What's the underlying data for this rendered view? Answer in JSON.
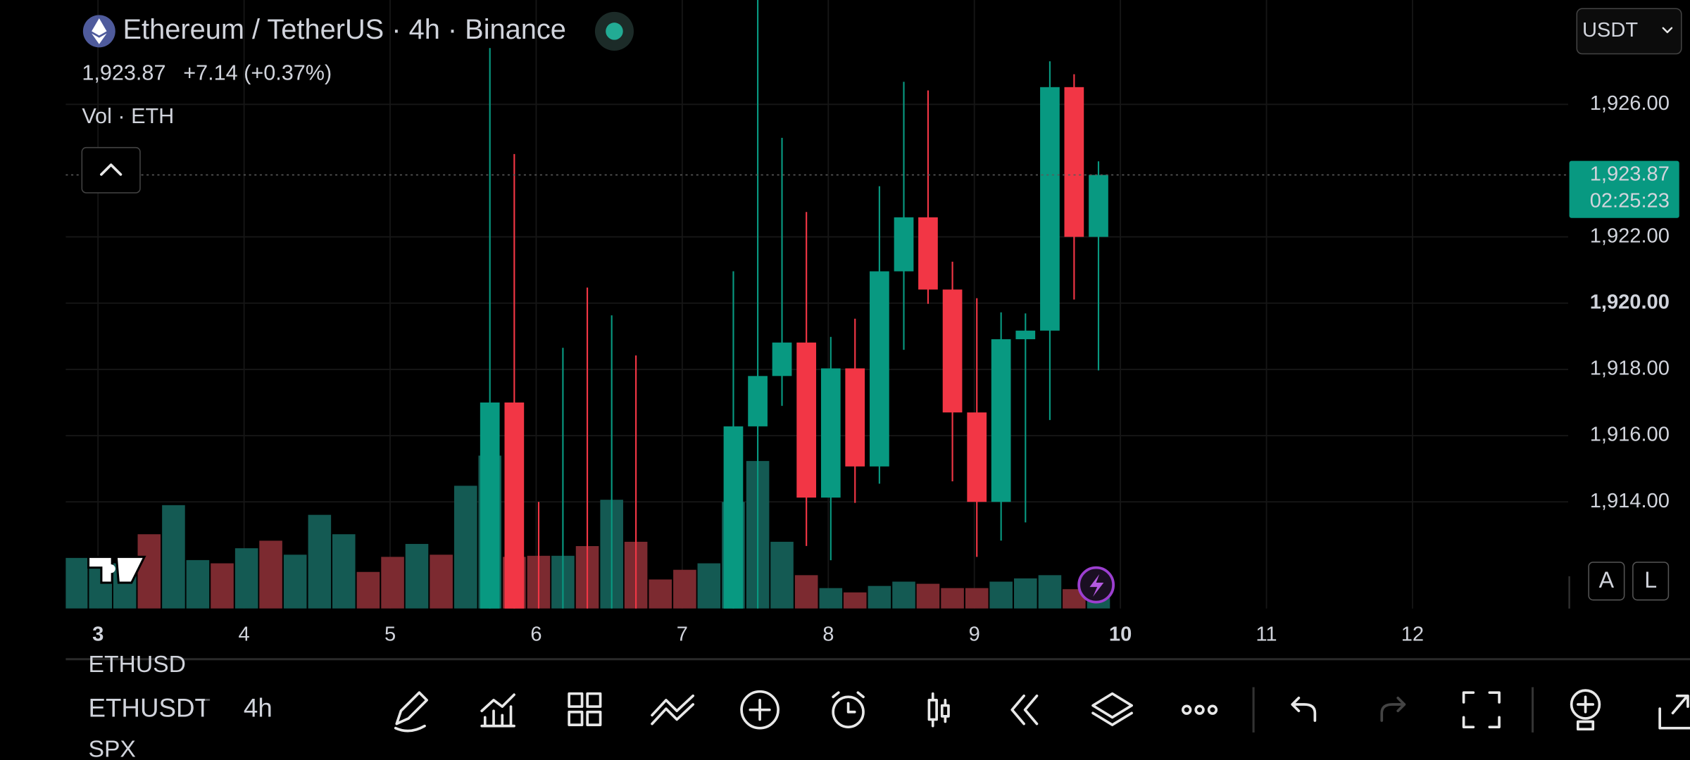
{
  "header": {
    "symbol": "Ethereum / TetherUS · 4h · Binance",
    "price": "1,923.87",
    "change": "+7.14 (+0.37%)",
    "volume_label": "Vol · ETH",
    "currency": "USDT"
  },
  "chart_data": {
    "type": "candlestick",
    "x": [
      2.85,
      3.017,
      3.183,
      3.35,
      3.517,
      3.683,
      3.85,
      4.017,
      4.183,
      4.35,
      4.517,
      4.683,
      4.85,
      5.017,
      5.183,
      5.35,
      5.517,
      5.683,
      5.85,
      6.017,
      6.183,
      6.35,
      6.517,
      6.683,
      6.85,
      7.017,
      7.183,
      7.35,
      7.517,
      7.683,
      7.85,
      8.017,
      8.183,
      8.35,
      8.517,
      8.683,
      8.85,
      9.017,
      9.183,
      9.35,
      9.517,
      9.683,
      9.85
    ],
    "open": [
      null,
      null,
      null,
      null,
      null,
      null,
      null,
      null,
      null,
      null,
      null,
      null,
      null,
      null,
      null,
      null,
      null,
      1910.5,
      1917.0,
      1910.7,
      1910.6,
      1910.7,
      1910.6,
      1910.7,
      null,
      null,
      null,
      1910.6,
      1916.28,
      1917.8,
      1918.81,
      1914.13,
      1918.03,
      1915.07,
      1920.96,
      1922.59,
      1920.41,
      1916.7,
      1914.0,
      1918.91,
      1919.17,
      1926.52,
      1922.0
    ],
    "high": [
      null,
      null,
      null,
      null,
      null,
      null,
      null,
      null,
      null,
      null,
      null,
      null,
      null,
      null,
      null,
      null,
      null,
      1927.7,
      1924.5,
      1914.0,
      1918.65,
      1920.47,
      1919.63,
      1918.42,
      null,
      null,
      null,
      1920.96,
      1929.5,
      1924.99,
      1922.75,
      1918.98,
      1919.53,
      1923.53,
      1926.68,
      1926.42,
      1921.25,
      1920.15,
      1919.72,
      1919.69,
      1927.3,
      1926.91,
      1924.28
    ],
    "low": [
      null,
      null,
      null,
      null,
      null,
      null,
      null,
      null,
      null,
      null,
      null,
      null,
      null,
      null,
      null,
      null,
      null,
      1910.4,
      1910.4,
      1910.4,
      1910.4,
      1910.4,
      1910.4,
      1910.4,
      null,
      null,
      null,
      1910.4,
      1910.5,
      1916.9,
      1912.67,
      1912.24,
      1913.97,
      1914.55,
      1918.59,
      1919.98,
      1914.62,
      1912.34,
      1912.83,
      1913.38,
      1916.47,
      1920.11,
      1917.97
    ],
    "close": [
      null,
      null,
      null,
      null,
      null,
      null,
      null,
      null,
      null,
      null,
      null,
      null,
      null,
      null,
      null,
      null,
      null,
      1917.0,
      1910.5,
      1910.6,
      1910.7,
      1910.6,
      1910.7,
      1910.6,
      null,
      null,
      null,
      1916.28,
      1917.8,
      1918.81,
      1914.13,
      1918.03,
      1915.07,
      1920.96,
      1922.59,
      1920.41,
      1916.7,
      1914.0,
      1918.91,
      1919.17,
      1926.52,
      1922.0,
      1923.87
    ],
    "volume": [
      47,
      40,
      42,
      69,
      96,
      45,
      42,
      56,
      63,
      50,
      87,
      69,
      34,
      48,
      60,
      50,
      114,
      142,
      48,
      49,
      49,
      58,
      101,
      62,
      27,
      36,
      42,
      99,
      137,
      62,
      31,
      19,
      15,
      21,
      25,
      23,
      19,
      19,
      25,
      28,
      31,
      18,
      10
    ],
    "volume_colors": [
      "#145a53",
      "#145a53",
      "#145a53",
      "#7c2a30",
      "#145a53",
      "#145a53",
      "#7c2a30",
      "#145a53",
      "#7c2a30",
      "#145a53",
      "#145a53",
      "#145a53",
      "#7c2a30",
      "#7c2a30",
      "#145a53",
      "#7c2a30",
      "#145a53",
      "#145a53",
      "#7c2a30",
      "#7c2a30",
      "#145a53",
      "#7c2a30",
      "#145a53",
      "#7c2a30",
      "#7c2a30",
      "#7c2a30",
      "#145a53",
      "#145a53",
      "#145a53",
      "#145a53",
      "#7c2a30",
      "#145a53",
      "#7c2a30",
      "#145a53",
      "#145a53",
      "#7c2a30",
      "#7c2a30",
      "#7c2a30",
      "#145a53",
      "#145a53",
      "#145a53",
      "#7c2a30",
      "#145a53"
    ],
    "up_color": "#089981",
    "down_color": "#f23645",
    "xlim": [
      2.779,
      13.066
    ],
    "xticks": [
      3,
      4,
      5,
      6,
      7,
      8,
      9,
      10,
      11,
      12
    ],
    "ylim": [
      1910.78,
      1929.15
    ],
    "yticks": [
      {
        "value": 1914,
        "label": "1,914.00"
      },
      {
        "value": 1916,
        "label": "1,916.00"
      },
      {
        "value": 1918,
        "label": "1,918.00"
      },
      {
        "value": 1920,
        "label": "1,920.00"
      },
      {
        "value": 1922,
        "label": "1,922.00"
      },
      {
        "value": 1926,
        "label": "1,926.00"
      }
    ],
    "last_price": {
      "value": 1923.87,
      "label": "1,923.87"
    },
    "countdown": "02:25:23",
    "grid": true
  },
  "scale_buttons": [
    "A",
    "L"
  ],
  "toolbar": {
    "symbols": [
      "ETHUSD",
      "ETHUSDT",
      "SPX"
    ],
    "interval": "4h"
  }
}
